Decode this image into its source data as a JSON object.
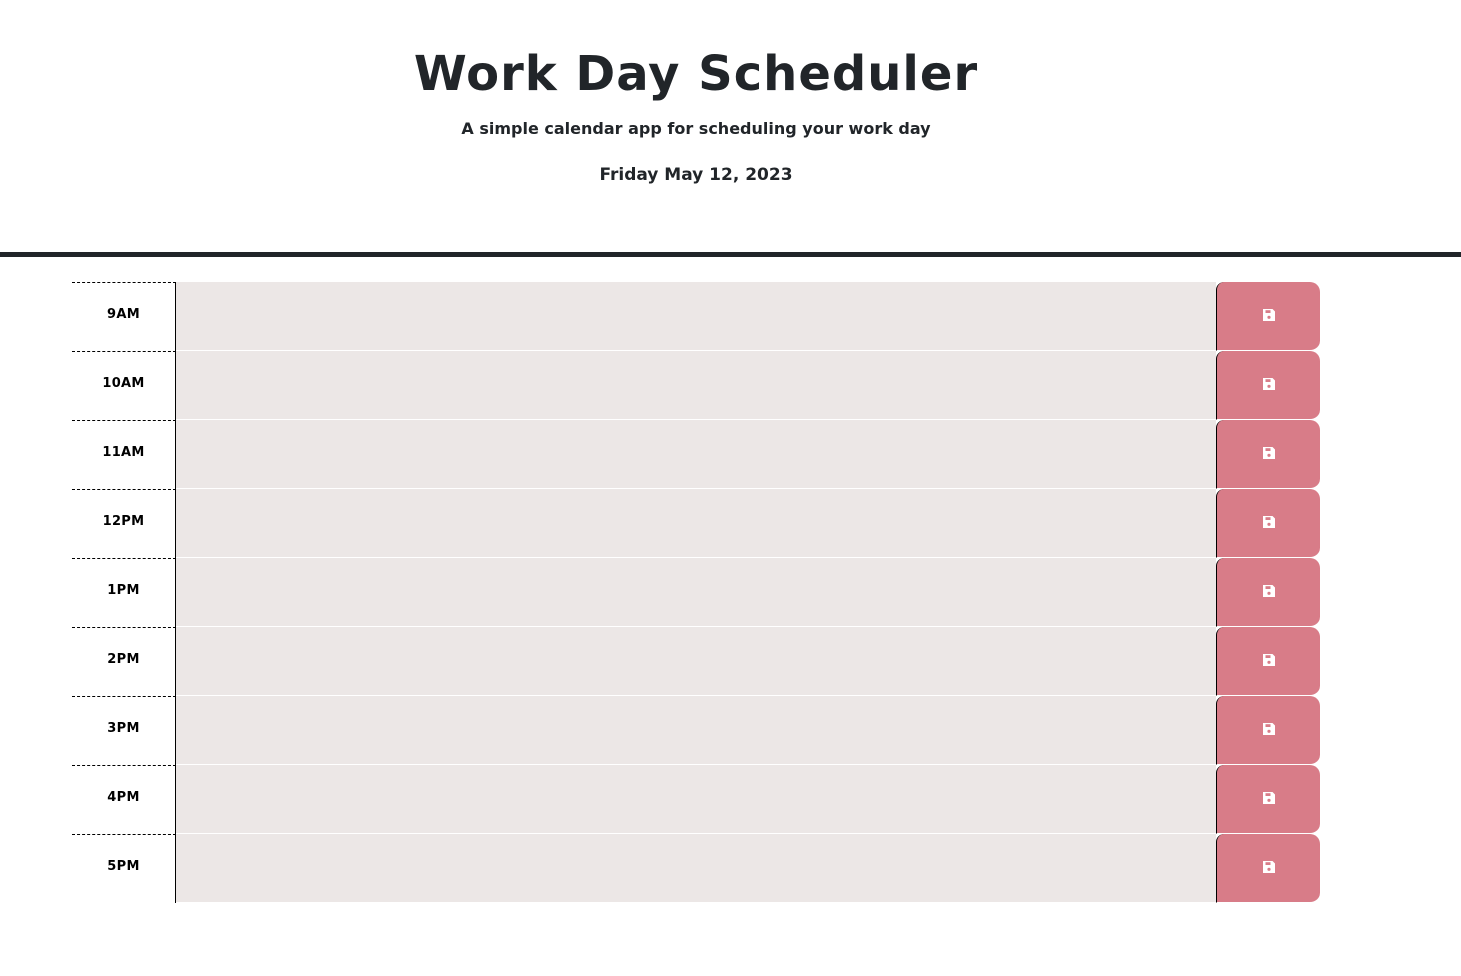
{
  "header": {
    "title": "Work Day Scheduler",
    "subtitle": "A simple calendar app for scheduling your work day",
    "current_date": "Friday May 12, 2023"
  },
  "colors": {
    "time_block_bg": "#ece7e6",
    "save_button_bg": "#d87c88",
    "save_icon": "#ffffff",
    "header_rule": "#212529"
  },
  "save_icon_name": "floppy-disk-icon",
  "time_blocks": [
    {
      "hour": "9AM",
      "description": ""
    },
    {
      "hour": "10AM",
      "description": ""
    },
    {
      "hour": "11AM",
      "description": ""
    },
    {
      "hour": "12PM",
      "description": ""
    },
    {
      "hour": "1PM",
      "description": ""
    },
    {
      "hour": "2PM",
      "description": ""
    },
    {
      "hour": "3PM",
      "description": ""
    },
    {
      "hour": "4PM",
      "description": ""
    },
    {
      "hour": "5PM",
      "description": ""
    }
  ]
}
